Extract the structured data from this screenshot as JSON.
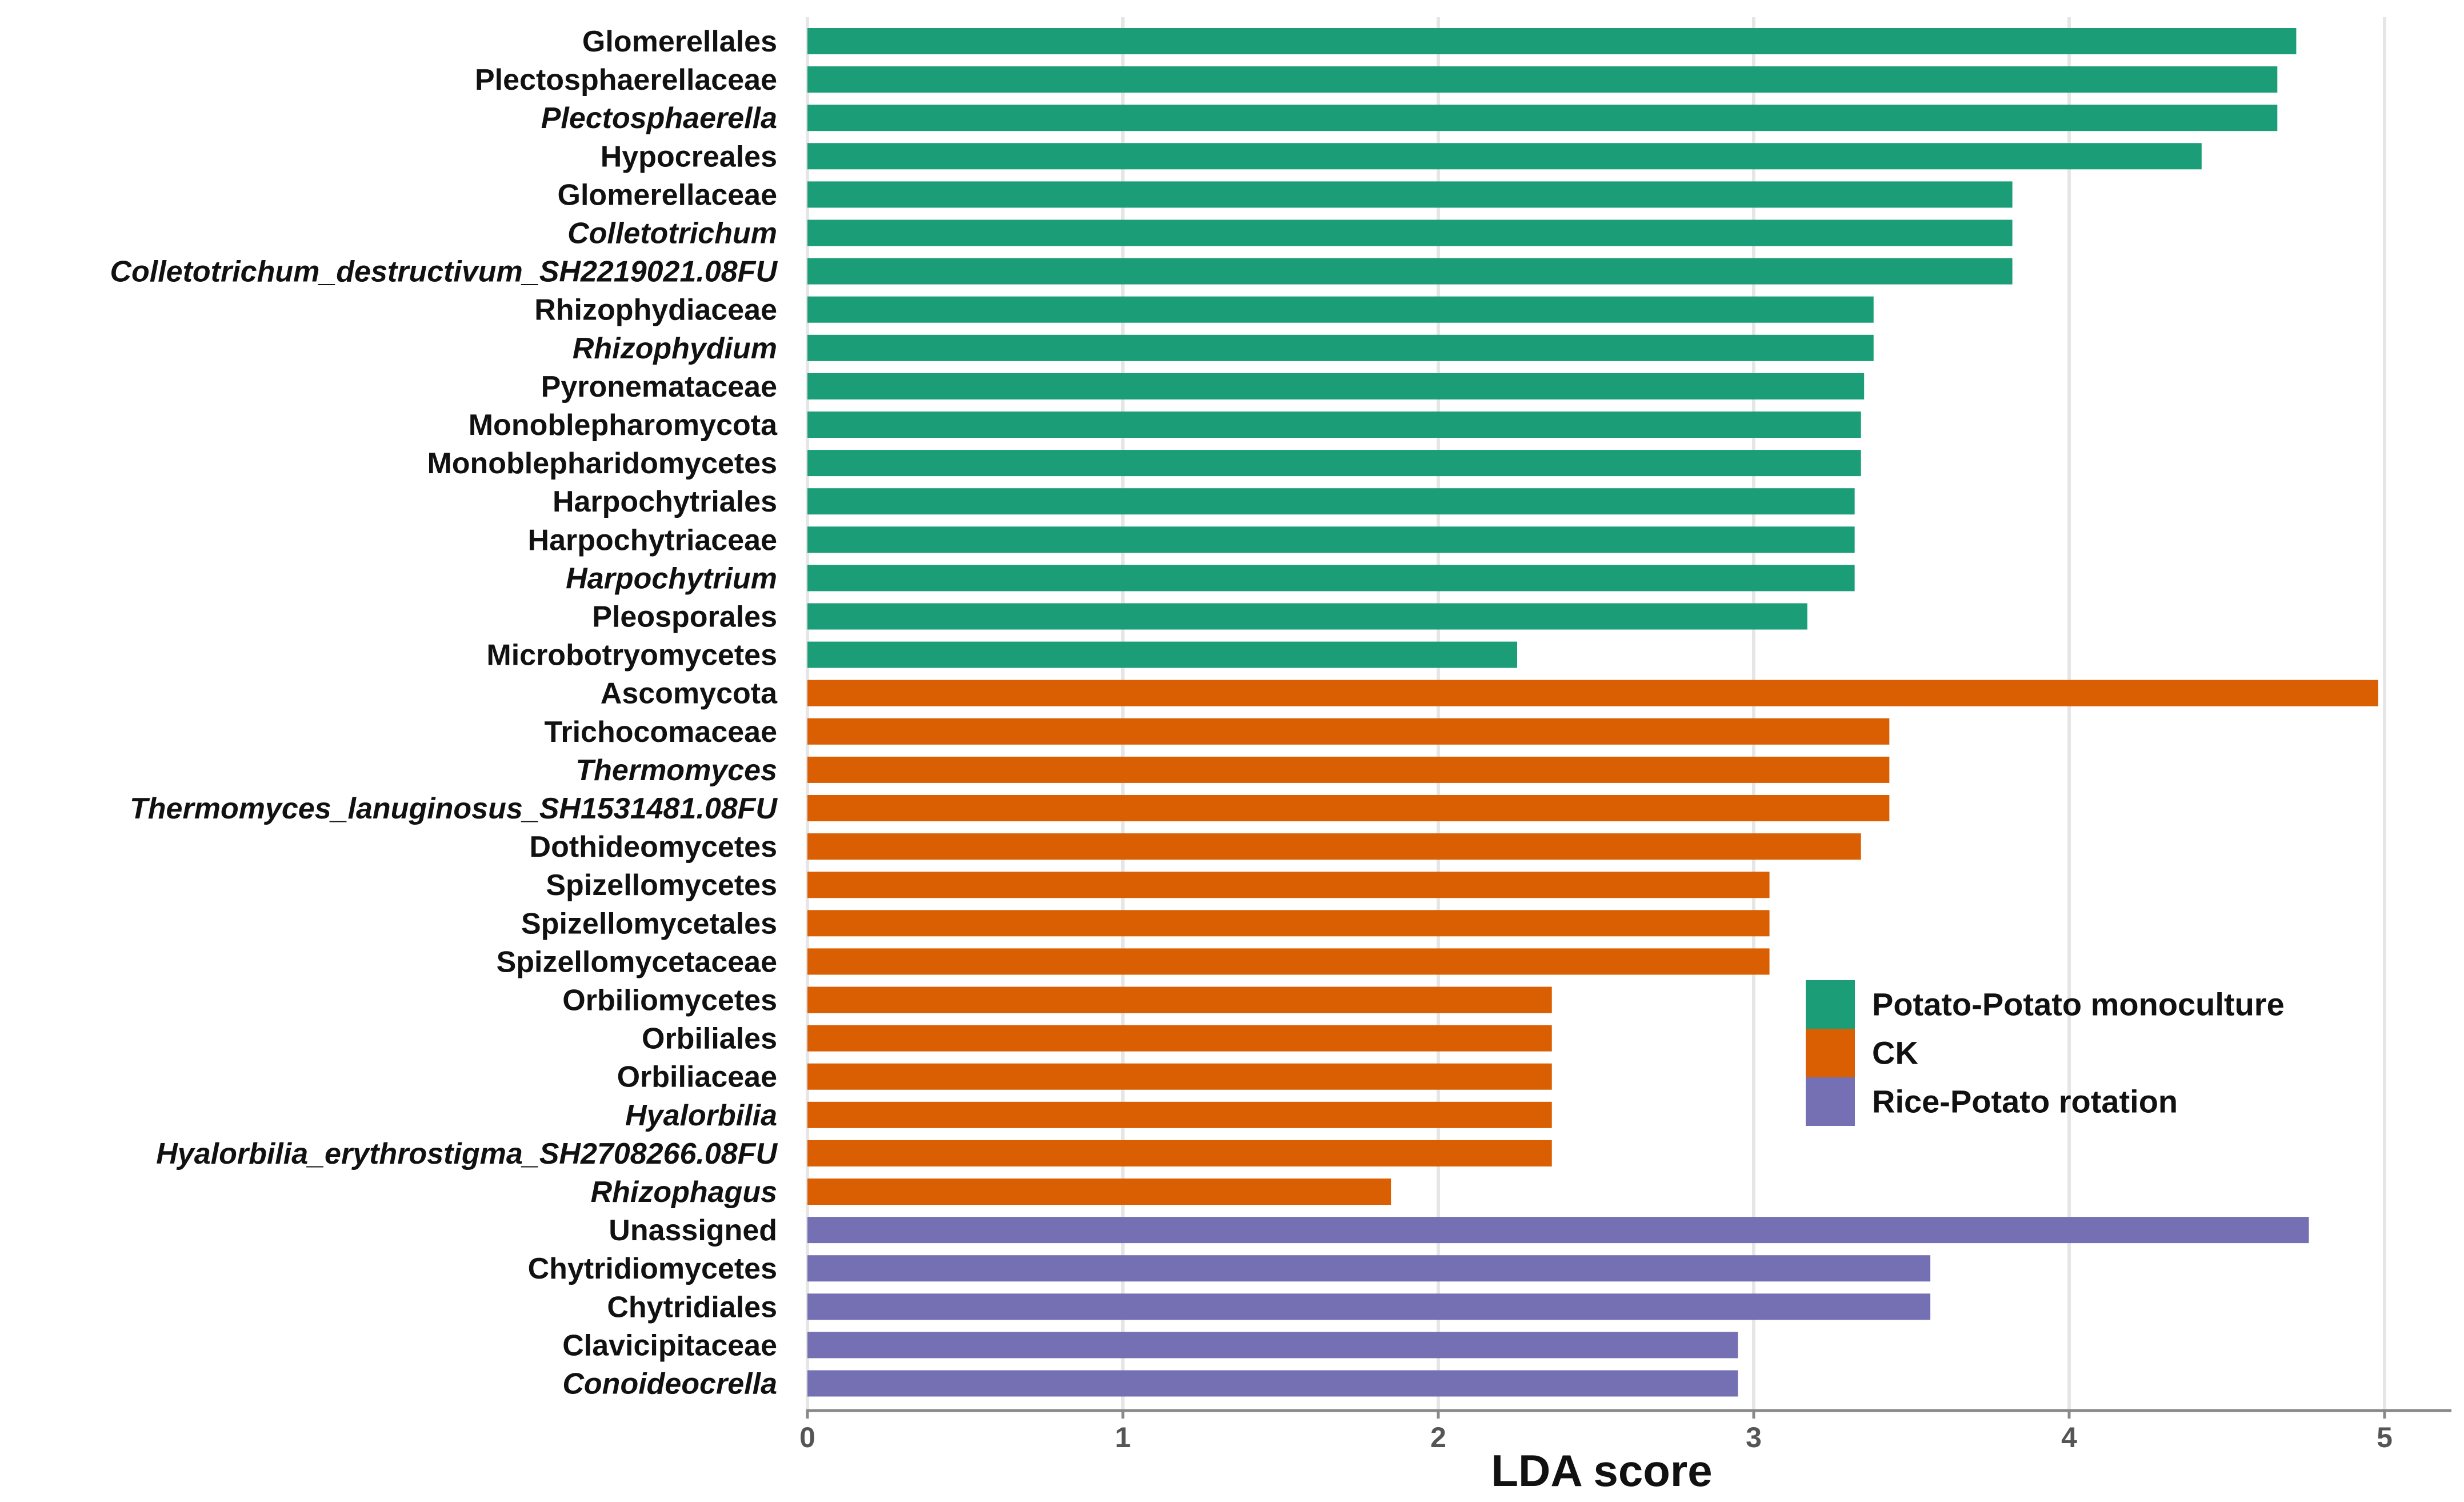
{
  "chart_data": {
    "type": "bar",
    "orientation": "horizontal",
    "xlabel": "LDA score",
    "xlim": [
      0,
      5.2
    ],
    "xticks": [
      0,
      1,
      2,
      3,
      4,
      5
    ],
    "grid": true,
    "legend_position": "right",
    "series": [
      {
        "name": "Potato-Potato monoculture",
        "color": "#1b9e77"
      },
      {
        "name": "CK",
        "color": "#d95f02"
      },
      {
        "name": "Rice-Potato rotation",
        "color": "#7570b3"
      }
    ],
    "bars": [
      {
        "label": "Glomerellales",
        "value": 4.72,
        "group": 0,
        "italic": false
      },
      {
        "label": "Plectosphaerellaceae",
        "value": 4.66,
        "group": 0,
        "italic": false
      },
      {
        "label": "Plectosphaerella",
        "value": 4.66,
        "group": 0,
        "italic": true
      },
      {
        "label": "Hypocreales",
        "value": 4.42,
        "group": 0,
        "italic": false
      },
      {
        "label": "Glomerellaceae",
        "value": 3.82,
        "group": 0,
        "italic": false
      },
      {
        "label": "Colletotrichum",
        "value": 3.82,
        "group": 0,
        "italic": true
      },
      {
        "label": "Colletotrichum_destructivum_SH2219021.08FU",
        "value": 3.82,
        "group": 0,
        "italic": true
      },
      {
        "label": "Rhizophydiaceae",
        "value": 3.38,
        "group": 0,
        "italic": false
      },
      {
        "label": "Rhizophydium",
        "value": 3.38,
        "group": 0,
        "italic": true
      },
      {
        "label": "Pyronemataceae",
        "value": 3.35,
        "group": 0,
        "italic": false
      },
      {
        "label": "Monoblepharomycota",
        "value": 3.34,
        "group": 0,
        "italic": false
      },
      {
        "label": "Monoblepharidomycetes",
        "value": 3.34,
        "group": 0,
        "italic": false
      },
      {
        "label": "Harpochytriales",
        "value": 3.32,
        "group": 0,
        "italic": false
      },
      {
        "label": "Harpochytriaceae",
        "value": 3.32,
        "group": 0,
        "italic": false
      },
      {
        "label": "Harpochytrium",
        "value": 3.32,
        "group": 0,
        "italic": true
      },
      {
        "label": "Pleosporales",
        "value": 3.17,
        "group": 0,
        "italic": false
      },
      {
        "label": "Microbotryomycetes",
        "value": 2.25,
        "group": 0,
        "italic": false
      },
      {
        "label": "Ascomycota",
        "value": 4.98,
        "group": 1,
        "italic": false
      },
      {
        "label": "Trichocomaceae",
        "value": 3.43,
        "group": 1,
        "italic": false
      },
      {
        "label": "Thermomyces",
        "value": 3.43,
        "group": 1,
        "italic": true
      },
      {
        "label": "Thermomyces_lanuginosus_SH1531481.08FU",
        "value": 3.43,
        "group": 1,
        "italic": true
      },
      {
        "label": "Dothideomycetes",
        "value": 3.34,
        "group": 1,
        "italic": false
      },
      {
        "label": "Spizellomycetes",
        "value": 3.05,
        "group": 1,
        "italic": false
      },
      {
        "label": "Spizellomycetales",
        "value": 3.05,
        "group": 1,
        "italic": false
      },
      {
        "label": "Spizellomycetaceae",
        "value": 3.05,
        "group": 1,
        "italic": false
      },
      {
        "label": "Orbiliomycetes",
        "value": 2.36,
        "group": 1,
        "italic": false
      },
      {
        "label": "Orbiliales",
        "value": 2.36,
        "group": 1,
        "italic": false
      },
      {
        "label": "Orbiliaceae",
        "value": 2.36,
        "group": 1,
        "italic": false
      },
      {
        "label": "Hyalorbilia",
        "value": 2.36,
        "group": 1,
        "italic": true
      },
      {
        "label": "Hyalorbilia_erythrostigma_SH2708266.08FU",
        "value": 2.36,
        "group": 1,
        "italic": true
      },
      {
        "label": "Rhizophagus",
        "value": 1.85,
        "group": 1,
        "italic": true
      },
      {
        "label": "Unassigned",
        "value": 4.76,
        "group": 2,
        "italic": false
      },
      {
        "label": "Chytridiomycetes",
        "value": 3.56,
        "group": 2,
        "italic": false
      },
      {
        "label": "Chytridiales",
        "value": 3.56,
        "group": 2,
        "italic": false
      },
      {
        "label": "Clavicipitaceae",
        "value": 2.95,
        "group": 2,
        "italic": false
      },
      {
        "label": "Conoideocrella",
        "value": 2.95,
        "group": 2,
        "italic": true
      }
    ]
  }
}
